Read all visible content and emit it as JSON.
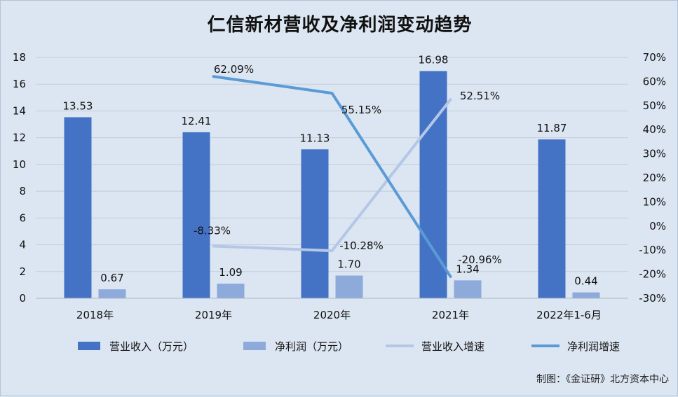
{
  "chart_data": {
    "type": "bar",
    "title": "仁信新材营收及净利润变动趋势",
    "categories": [
      "2018年",
      "2019年",
      "2020年",
      "2021年",
      "2022年1-6月"
    ],
    "series": [
      {
        "name": "营业收入（万元）",
        "type": "bar",
        "axis": "left",
        "color": "#4472c4",
        "values": [
          13.53,
          12.41,
          11.13,
          16.98,
          11.87
        ],
        "labels": [
          "13.53",
          "12.41",
          "11.13",
          "16.98",
          "11.87"
        ]
      },
      {
        "name": "净利润（万元）",
        "type": "bar",
        "axis": "left",
        "color": "#8eaadb",
        "values": [
          0.67,
          1.09,
          1.7,
          1.34,
          0.44
        ],
        "labels": [
          "0.67",
          "1.09",
          "1.70",
          "1.34",
          "0.44"
        ]
      },
      {
        "name": "营业收入增速",
        "type": "line",
        "axis": "right",
        "color": "#b4c7e7",
        "values": [
          null,
          -8.33,
          -10.28,
          52.51,
          null
        ],
        "labels": [
          "",
          "-8.33%",
          "-10.28%",
          "52.51%",
          ""
        ]
      },
      {
        "name": "净利润增速",
        "type": "line",
        "axis": "right",
        "color": "#5b9bd5",
        "values": [
          null,
          62.09,
          55.15,
          -20.96,
          null
        ],
        "labels": [
          "",
          "62.09%",
          "55.15%",
          "-20.96%",
          ""
        ]
      }
    ],
    "yleft": {
      "min": 0,
      "max": 18,
      "step": 2,
      "ticks": [
        "0",
        "2",
        "4",
        "6",
        "8",
        "10",
        "12",
        "14",
        "16",
        "18"
      ]
    },
    "yright": {
      "min": -30,
      "max": 70,
      "step": 10,
      "ticks": [
        "-30%",
        "-20%",
        "-10%",
        "0%",
        "10%",
        "20%",
        "30%",
        "40%",
        "50%",
        "60%",
        "70%"
      ]
    },
    "grid": true,
    "legend": "bottom"
  },
  "credit": "制图：《金证研》北方资本中心"
}
